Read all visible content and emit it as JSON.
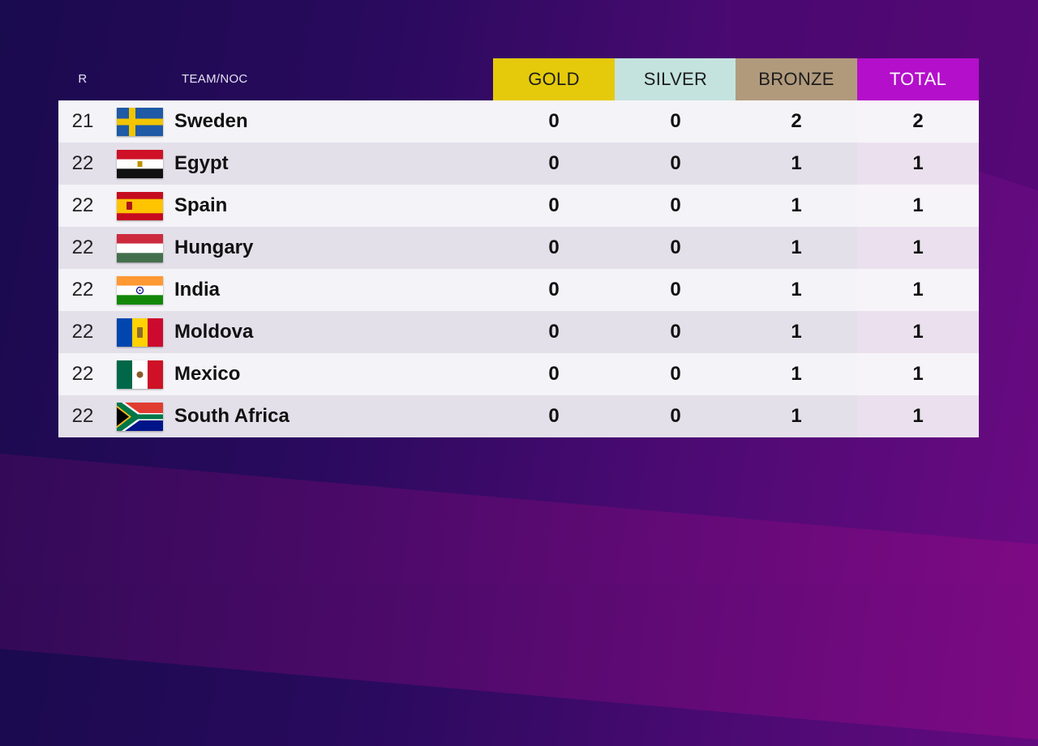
{
  "header": {
    "rank": "R",
    "team": "TEAM/NOC",
    "gold": "GOLD",
    "silver": "SILVER",
    "bronze": "BRONZE",
    "total": "TOTAL"
  },
  "colors": {
    "gold": "#e5ca0b",
    "silver": "#c4e3df",
    "bronze": "#b19a7c",
    "total": "#b40fcb"
  },
  "rows": [
    {
      "rank": "21",
      "team": "Sweden",
      "flag": "sweden-flag-icon",
      "gold": "0",
      "silver": "0",
      "bronze": "2",
      "total": "2"
    },
    {
      "rank": "22",
      "team": "Egypt",
      "flag": "egypt-flag-icon",
      "gold": "0",
      "silver": "0",
      "bronze": "1",
      "total": "1"
    },
    {
      "rank": "22",
      "team": "Spain",
      "flag": "spain-flag-icon",
      "gold": "0",
      "silver": "0",
      "bronze": "1",
      "total": "1"
    },
    {
      "rank": "22",
      "team": "Hungary",
      "flag": "hungary-flag-icon",
      "gold": "0",
      "silver": "0",
      "bronze": "1",
      "total": "1"
    },
    {
      "rank": "22",
      "team": "India",
      "flag": "india-flag-icon",
      "gold": "0",
      "silver": "0",
      "bronze": "1",
      "total": "1"
    },
    {
      "rank": "22",
      "team": "Moldova",
      "flag": "moldova-flag-icon",
      "gold": "0",
      "silver": "0",
      "bronze": "1",
      "total": "1"
    },
    {
      "rank": "22",
      "team": "Mexico",
      "flag": "mexico-flag-icon",
      "gold": "0",
      "silver": "0",
      "bronze": "1",
      "total": "1"
    },
    {
      "rank": "22",
      "team": "South Africa",
      "flag": "south-africa-flag-icon",
      "gold": "0",
      "silver": "0",
      "bronze": "1",
      "total": "1"
    }
  ]
}
